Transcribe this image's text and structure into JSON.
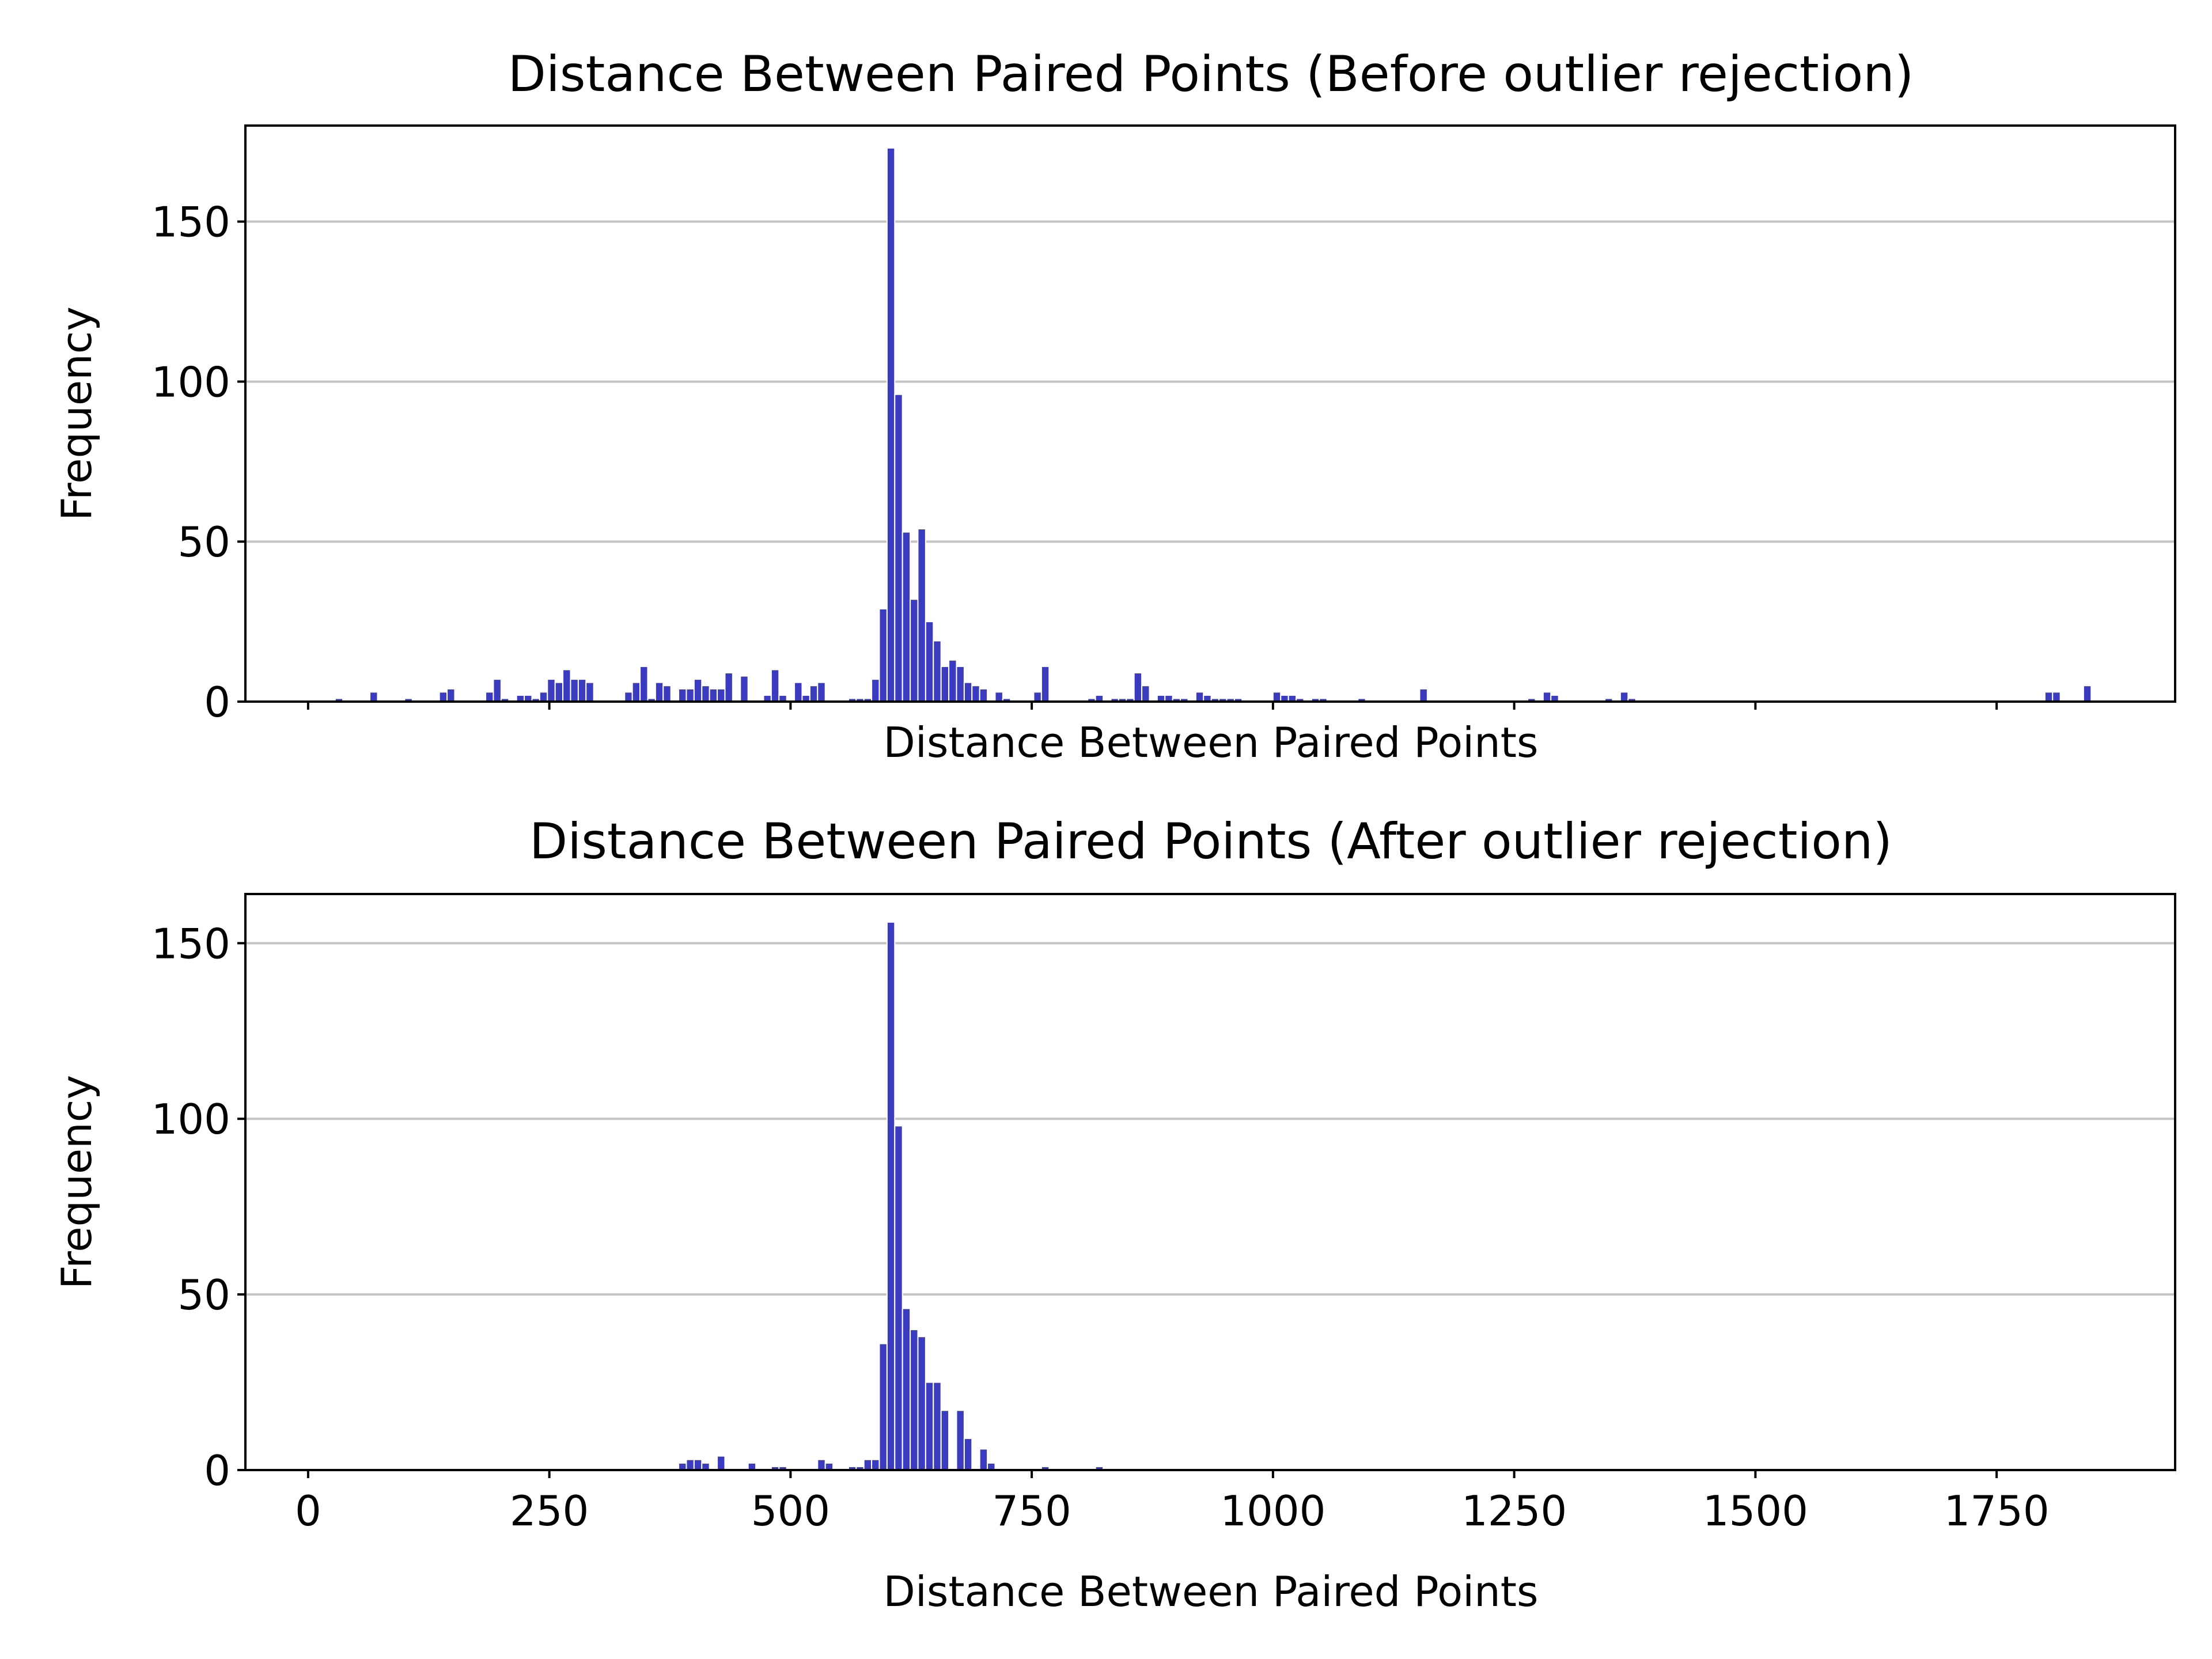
{
  "colors": {
    "bar": "#3b3bbf",
    "grid": "#c4c4c4"
  },
  "chart_data": [
    {
      "type": "bar",
      "subtype": "histogram",
      "title": "Distance Between Paired Points (Before outlier rejection)",
      "xlabel": "Distance Between Paired Points",
      "ylabel": "Frequency",
      "xlim": [
        -65,
        1935
      ],
      "ylim": [
        0,
        180
      ],
      "xticks": [
        0,
        250,
        500,
        750,
        1000,
        1250,
        1500,
        1750
      ],
      "xtick_labels_shown": false,
      "yticks": [
        0,
        50,
        100,
        150
      ],
      "ytick_labels": [
        "0",
        "50",
        "100",
        "150"
      ],
      "grid": "y",
      "bin_width": 8,
      "bins": [
        [
          28,
          1
        ],
        [
          64,
          3
        ],
        [
          100,
          1
        ],
        [
          136,
          3
        ],
        [
          144,
          4
        ],
        [
          184,
          3
        ],
        [
          192,
          7
        ],
        [
          200,
          1
        ],
        [
          216,
          2
        ],
        [
          224,
          2
        ],
        [
          232,
          1
        ],
        [
          240,
          3
        ],
        [
          248,
          7
        ],
        [
          256,
          6
        ],
        [
          264,
          10
        ],
        [
          272,
          7
        ],
        [
          280,
          7
        ],
        [
          288,
          6
        ],
        [
          328,
          3
        ],
        [
          336,
          6
        ],
        [
          344,
          11
        ],
        [
          352,
          1
        ],
        [
          360,
          6
        ],
        [
          368,
          5
        ],
        [
          384,
          4
        ],
        [
          392,
          4
        ],
        [
          400,
          7
        ],
        [
          408,
          5
        ],
        [
          416,
          4
        ],
        [
          424,
          4
        ],
        [
          432,
          9
        ],
        [
          448,
          8
        ],
        [
          472,
          2
        ],
        [
          480,
          10
        ],
        [
          488,
          2
        ],
        [
          504,
          6
        ],
        [
          512,
          2
        ],
        [
          520,
          5
        ],
        [
          528,
          6
        ],
        [
          560,
          1
        ],
        [
          568,
          1
        ],
        [
          576,
          1
        ],
        [
          584,
          7
        ],
        [
          592,
          29
        ],
        [
          600,
          173
        ],
        [
          608,
          96
        ],
        [
          616,
          53
        ],
        [
          624,
          32
        ],
        [
          632,
          54
        ],
        [
          640,
          25
        ],
        [
          648,
          19
        ],
        [
          656,
          11
        ],
        [
          664,
          13
        ],
        [
          672,
          11
        ],
        [
          680,
          6
        ],
        [
          688,
          5
        ],
        [
          696,
          4
        ],
        [
          712,
          3
        ],
        [
          720,
          1
        ],
        [
          752,
          3
        ],
        [
          760,
          11
        ],
        [
          808,
          1
        ],
        [
          816,
          2
        ],
        [
          832,
          1
        ],
        [
          840,
          1
        ],
        [
          848,
          1
        ],
        [
          856,
          9
        ],
        [
          864,
          5
        ],
        [
          880,
          2
        ],
        [
          888,
          2
        ],
        [
          896,
          1
        ],
        [
          904,
          1
        ],
        [
          920,
          3
        ],
        [
          928,
          2
        ],
        [
          936,
          1
        ],
        [
          944,
          1
        ],
        [
          952,
          1
        ],
        [
          960,
          1
        ],
        [
          1000,
          3
        ],
        [
          1008,
          2
        ],
        [
          1016,
          2
        ],
        [
          1024,
          1
        ],
        [
          1040,
          1
        ],
        [
          1048,
          1
        ],
        [
          1088,
          1
        ],
        [
          1152,
          4
        ],
        [
          1264,
          1
        ],
        [
          1280,
          3
        ],
        [
          1288,
          2
        ],
        [
          1344,
          1
        ],
        [
          1360,
          3
        ],
        [
          1368,
          1
        ],
        [
          1800,
          3
        ],
        [
          1808,
          3
        ],
        [
          1840,
          5
        ]
      ]
    },
    {
      "type": "bar",
      "subtype": "histogram",
      "title": "Distance Between Paired Points (After outlier rejection)",
      "xlabel": "Distance Between Paired Points",
      "ylabel": "Frequency",
      "xlim": [
        -65,
        1935
      ],
      "ylim": [
        0,
        164
      ],
      "xticks": [
        0,
        250,
        500,
        750,
        1000,
        1250,
        1500,
        1750
      ],
      "xtick_labels": [
        "0",
        "250",
        "500",
        "750",
        "1000",
        "1250",
        "1500",
        "1750"
      ],
      "xtick_labels_shown": true,
      "yticks": [
        0,
        50,
        100,
        150
      ],
      "ytick_labels": [
        "0",
        "50",
        "100",
        "150"
      ],
      "grid": "y",
      "bin_width": 8,
      "bins": [
        [
          384,
          2
        ],
        [
          392,
          3
        ],
        [
          400,
          3
        ],
        [
          408,
          2
        ],
        [
          424,
          4
        ],
        [
          456,
          2
        ],
        [
          480,
          1
        ],
        [
          488,
          1
        ],
        [
          528,
          3
        ],
        [
          536,
          2
        ],
        [
          560,
          1
        ],
        [
          568,
          1
        ],
        [
          576,
          3
        ],
        [
          584,
          3
        ],
        [
          592,
          36
        ],
        [
          600,
          156
        ],
        [
          608,
          98
        ],
        [
          616,
          46
        ],
        [
          624,
          40
        ],
        [
          632,
          38
        ],
        [
          640,
          25
        ],
        [
          648,
          25
        ],
        [
          656,
          17
        ],
        [
          672,
          17
        ],
        [
          680,
          9
        ],
        [
          696,
          6
        ],
        [
          704,
          2
        ],
        [
          760,
          1
        ],
        [
          816,
          1
        ]
      ]
    }
  ]
}
